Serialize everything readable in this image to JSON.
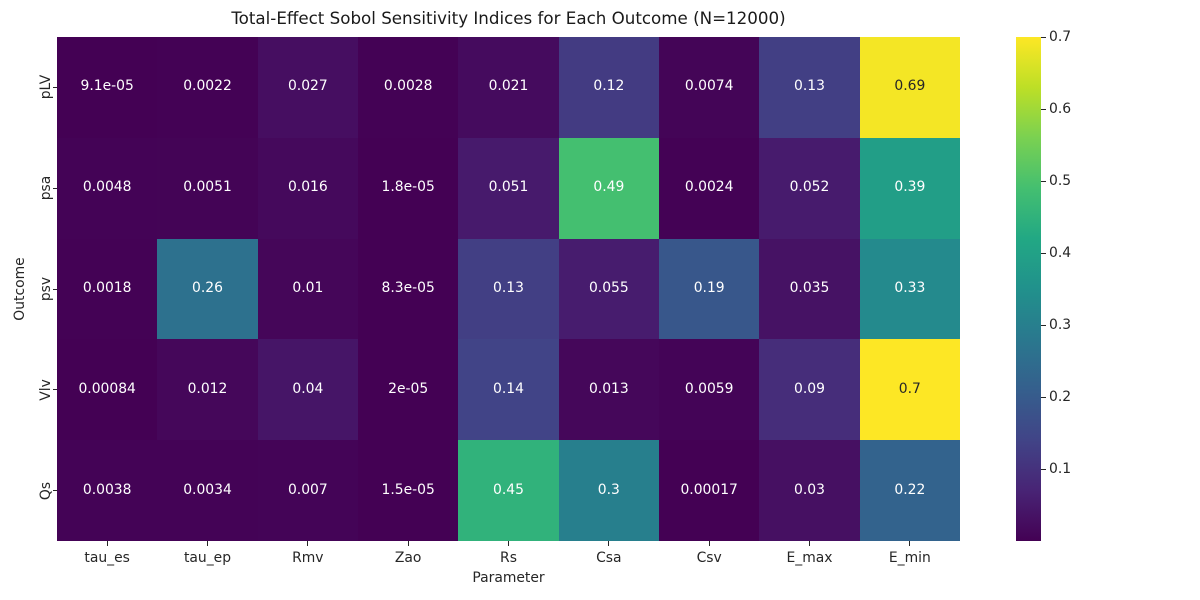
{
  "chart_data": {
    "type": "heatmap",
    "title": "Total-Effect Sobol Sensitivity Indices for Each Outcome (N=12000)",
    "xlabel": "Parameter",
    "ylabel": "Outcome",
    "columns": [
      "tau_es",
      "tau_ep",
      "Rmv",
      "Zao",
      "Rs",
      "Csa",
      "Csv",
      "E_max",
      "E_min"
    ],
    "rows": [
      "pLV",
      "psa",
      "psv",
      "Vlv",
      "Qs"
    ],
    "values": [
      [
        9.1e-05,
        0.0022,
        0.027,
        0.0028,
        0.021,
        0.12,
        0.0074,
        0.13,
        0.69
      ],
      [
        0.0048,
        0.0051,
        0.016,
        1.8e-05,
        0.051,
        0.49,
        0.0024,
        0.052,
        0.39
      ],
      [
        0.0018,
        0.26,
        0.01,
        8.3e-05,
        0.13,
        0.055,
        0.19,
        0.035,
        0.33
      ],
      [
        0.00084,
        0.012,
        0.04,
        2e-05,
        0.14,
        0.013,
        0.0059,
        0.09,
        0.7
      ],
      [
        0.0038,
        0.0034,
        0.007,
        1.5e-05,
        0.45,
        0.3,
        0.00017,
        0.03,
        0.22
      ]
    ],
    "cell_labels": [
      [
        "9.1e-05",
        "0.0022",
        "0.027",
        "0.0028",
        "0.021",
        "0.12",
        "0.0074",
        "0.13",
        "0.69"
      ],
      [
        "0.0048",
        "0.0051",
        "0.016",
        "1.8e-05",
        "0.051",
        "0.49",
        "0.0024",
        "0.052",
        "0.39"
      ],
      [
        "0.0018",
        "0.26",
        "0.01",
        "8.3e-05",
        "0.13",
        "0.055",
        "0.19",
        "0.035",
        "0.33"
      ],
      [
        "0.00084",
        "0.012",
        "0.04",
        "2e-05",
        "0.14",
        "0.013",
        "0.0059",
        "0.09",
        "0.7"
      ],
      [
        "0.0038",
        "0.0034",
        "0.007",
        "1.5e-05",
        "0.45",
        "0.3",
        "0.00017",
        "0.03",
        "0.22"
      ]
    ],
    "colormap": "viridis",
    "vmin": 1.5e-05,
    "vmax": 0.7,
    "colorbar_ticks": [
      "0.1",
      "0.2",
      "0.3",
      "0.4",
      "0.5",
      "0.6",
      "0.7"
    ],
    "colorbar_position": "right",
    "grid": false,
    "annotation_colors": {
      "on_dark": "#ffffff",
      "on_light": "#262626"
    }
  }
}
